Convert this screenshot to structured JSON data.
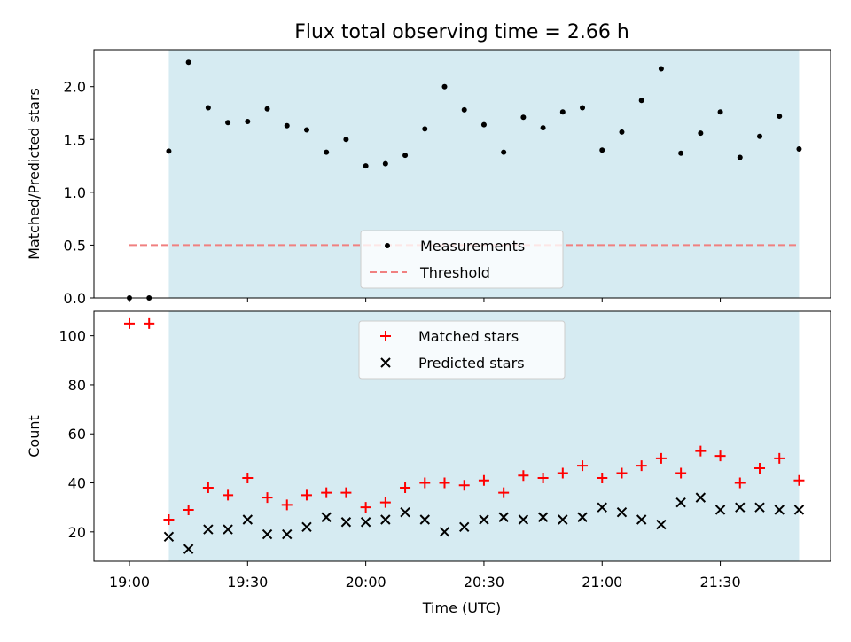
{
  "chart_data": [
    {
      "type": "scatter",
      "title": "Flux total observing time = 2.66 h",
      "xlabel": "",
      "ylabel": "Matched/Predicted stars",
      "ylim": [
        0,
        2.35
      ],
      "yticks": [
        "0.0",
        "0.5",
        "1.0",
        "1.5",
        "2.0"
      ],
      "ytick_values": [
        0,
        0.5,
        1.0,
        1.5,
        2.0
      ],
      "shaded_region": {
        "x": [
          "19:10",
          "21:50"
        ],
        "color": "#add8e6"
      },
      "series": [
        {
          "name": "Measurements",
          "marker": "dot",
          "color": "#000000",
          "x": [
            "19:00",
            "19:05",
            "19:10",
            "19:15",
            "19:20",
            "19:25",
            "19:30",
            "19:35",
            "19:40",
            "19:45",
            "19:50",
            "19:55",
            "20:00",
            "20:05",
            "20:10",
            "20:15",
            "20:20",
            "20:25",
            "20:30",
            "20:35",
            "20:40",
            "20:45",
            "20:50",
            "20:55",
            "21:00",
            "21:05",
            "21:10",
            "21:15",
            "21:20",
            "21:25",
            "21:30",
            "21:35",
            "21:40",
            "21:45",
            "21:50"
          ],
          "values": [
            0.0,
            0.0,
            1.39,
            2.23,
            1.8,
            1.66,
            1.67,
            1.79,
            1.63,
            1.59,
            1.38,
            1.5,
            1.25,
            1.27,
            1.35,
            1.6,
            2.0,
            1.78,
            1.64,
            1.38,
            1.71,
            1.61,
            1.76,
            1.8,
            1.4,
            1.57,
            1.87,
            2.17,
            1.37,
            1.56,
            1.76,
            1.33,
            1.53,
            1.72,
            1.41
          ]
        },
        {
          "name": "Threshold",
          "style": "dashed",
          "color": "#f08080",
          "x": [
            "19:00",
            "21:50"
          ],
          "values": [
            0.5,
            0.5
          ]
        }
      ],
      "legend": "lower-center"
    },
    {
      "type": "scatter",
      "xlabel": "Time (UTC)",
      "ylabel": "Count",
      "ylim": [
        8,
        110
      ],
      "yticks": [
        "20",
        "40",
        "60",
        "80",
        "100"
      ],
      "ytick_values": [
        20,
        40,
        60,
        80,
        100
      ],
      "xlim": [
        "18:51",
        "21:58"
      ],
      "xticks": [
        "19:00",
        "19:30",
        "20:00",
        "20:30",
        "21:00",
        "21:30"
      ],
      "shaded_region": {
        "x": [
          "19:10",
          "21:50"
        ],
        "color": "#add8e6"
      },
      "series": [
        {
          "name": "Matched stars",
          "marker": "plus",
          "color": "#ff0000",
          "x": [
            "19:00",
            "19:05",
            "19:10",
            "19:15",
            "19:20",
            "19:25",
            "19:30",
            "19:35",
            "19:40",
            "19:45",
            "19:50",
            "19:55",
            "20:00",
            "20:05",
            "20:10",
            "20:15",
            "20:20",
            "20:25",
            "20:30",
            "20:35",
            "20:40",
            "20:45",
            "20:50",
            "20:55",
            "21:00",
            "21:05",
            "21:10",
            "21:15",
            "21:20",
            "21:25",
            "21:30",
            "21:35",
            "21:40",
            "21:45",
            "21:50"
          ],
          "values": [
            105,
            105,
            25,
            29,
            38,
            35,
            42,
            34,
            31,
            35,
            36,
            36,
            30,
            32,
            38,
            40,
            40,
            39,
            41,
            36,
            43,
            42,
            44,
            47,
            42,
            44,
            47,
            50,
            44,
            53,
            51,
            40,
            46,
            50,
            41
          ]
        },
        {
          "name": "Predicted stars",
          "marker": "x",
          "color": "#000000",
          "x": [
            "19:10",
            "19:15",
            "19:20",
            "19:25",
            "19:30",
            "19:35",
            "19:40",
            "19:45",
            "19:50",
            "19:55",
            "20:00",
            "20:05",
            "20:10",
            "20:15",
            "20:20",
            "20:25",
            "20:30",
            "20:35",
            "20:40",
            "20:45",
            "20:50",
            "20:55",
            "21:00",
            "21:05",
            "21:10",
            "21:15",
            "21:20",
            "21:25",
            "21:30",
            "21:35",
            "21:40",
            "21:45",
            "21:50"
          ],
          "values": [
            18,
            13,
            21,
            21,
            25,
            19,
            19,
            22,
            26,
            24,
            24,
            25,
            28,
            25,
            20,
            22,
            25,
            26,
            25,
            26,
            25,
            26,
            30,
            28,
            25,
            23,
            32,
            34,
            29,
            30,
            30,
            29,
            29
          ]
        }
      ],
      "legend": "upper-center"
    }
  ]
}
